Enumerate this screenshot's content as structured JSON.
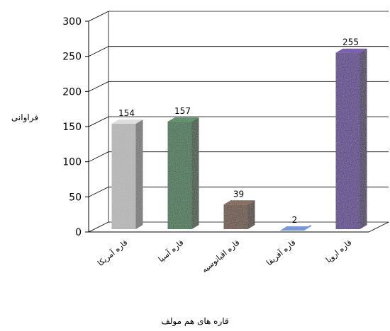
{
  "chart_data": {
    "type": "bar",
    "title": "",
    "xlabel": "قاره های هم مولف",
    "ylabel": "فراوانی",
    "ylim": [
      0,
      300
    ],
    "yticks": [
      0,
      50,
      100,
      150,
      200,
      250,
      300
    ],
    "grid": true,
    "three_d": true,
    "categories": [
      "قاره آمریکا",
      "قاره آسیا",
      "قاره اقیانوسیه",
      "قاره آفریقا",
      "قاره اروپا"
    ],
    "values": [
      154,
      157,
      39,
      2,
      255
    ],
    "data_labels": [
      "154",
      "157",
      "39",
      "2",
      "255"
    ],
    "colors": [
      "#b8b8b8",
      "#1e6a3a",
      "#5c3b1e",
      "#4a6fb0",
      "#4b1a86"
    ]
  }
}
